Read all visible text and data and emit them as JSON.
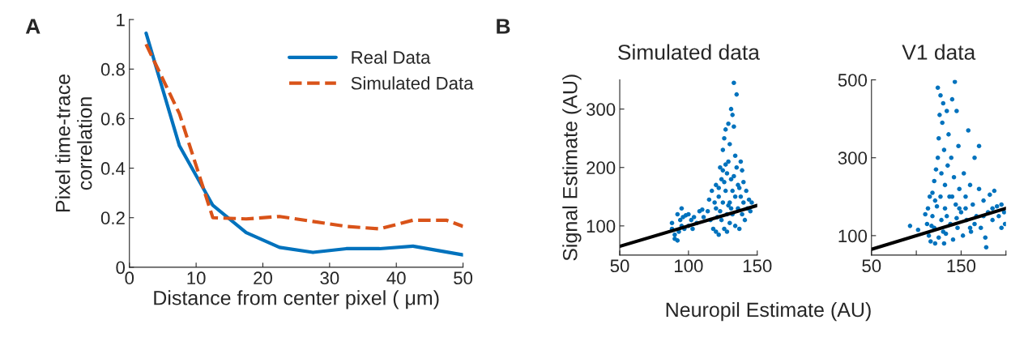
{
  "chart_data": [
    {
      "type": "line",
      "xlabel": "Distance from center pixel ( μm)",
      "ylabel": "Pixel time-trace\ncorrelation",
      "annotations": [
        "A"
      ],
      "xlim": [
        0,
        50
      ],
      "ylim": [
        0,
        1
      ],
      "xticks": [
        0,
        10,
        20,
        30,
        40,
        50
      ],
      "yticks": [
        0,
        0.2,
        0.4,
        0.6,
        0.8,
        1
      ],
      "grid": false,
      "legend": "top right",
      "series": [
        {
          "name": "Real Data",
          "color": "#0072bd",
          "line_style": "solid",
          "x": [
            2.5,
            7.5,
            12.5,
            17.5,
            22.5,
            27.5,
            32.5,
            37.5,
            42.5,
            50
          ],
          "values": [
            0.945,
            0.49,
            0.25,
            0.14,
            0.08,
            0.06,
            0.075,
            0.075,
            0.085,
            0.05
          ]
        },
        {
          "name": "Simulated Data",
          "color": "#d95319",
          "line_style": "dashed",
          "x": [
            2.5,
            7.5,
            12.5,
            17.5,
            22.5,
            27.5,
            32.5,
            37.5,
            42.5,
            47.5,
            50
          ],
          "values": [
            0.9,
            0.62,
            0.2,
            0.195,
            0.205,
            0.185,
            0.165,
            0.155,
            0.19,
            0.19,
            0.165
          ]
        }
      ]
    },
    {
      "type": "scatter",
      "title": "Simulated data",
      "ylabel": "Signal Estimate (AU)",
      "xlabel": "Neuropil Estimate (AU)",
      "annotations": [
        "B"
      ],
      "xlim": [
        50,
        150
      ],
      "ylim": [
        50,
        350
      ],
      "xticks": [
        50,
        100,
        150
      ],
      "yticks": [
        100,
        200,
        300
      ],
      "grid": false,
      "series": [
        {
          "type": "scatter",
          "marker": "circle",
          "color": "#0072bd",
          "x": [
            88,
            88,
            90,
            90,
            92,
            93,
            95,
            94,
            96,
            98,
            100,
            102,
            100,
            104,
            106,
            108,
            110,
            111,
            95,
            92,
            97,
            103,
            114,
            115,
            116,
            117,
            118,
            120,
            120,
            120,
            122,
            122,
            123,
            124,
            124,
            125,
            125,
            126,
            126,
            127,
            127,
            128,
            128,
            128,
            129,
            129,
            130,
            130,
            130,
            131,
            131,
            132,
            132,
            132,
            133,
            133,
            134,
            134,
            134,
            135,
            135,
            136,
            136,
            137,
            138,
            138,
            139,
            140,
            140,
            141,
            142,
            143,
            144,
            146,
            145,
            121,
            119,
            123,
            126,
            129,
            131,
            133,
            137,
            139,
            127,
            125,
            122
          ],
          "values": [
            105,
            95,
            85,
            78,
            75,
            90,
            100,
            110,
            115,
            118,
            120,
            110,
            100,
            115,
            105,
            125,
            128,
            115,
            130,
            120,
            95,
            95,
            125,
            145,
            110,
            160,
            95,
            170,
            130,
            90,
            85,
            150,
            200,
            180,
            110,
            230,
            140,
            95,
            250,
            265,
            160,
            190,
            120,
            90,
            275,
            210,
            240,
            140,
            105,
            300,
            180,
            290,
            160,
            120,
            345,
            270,
            220,
            150,
            100,
            325,
            200,
            170,
            130,
            95,
            210,
            150,
            120,
            175,
            140,
            110,
            160,
            130,
            145,
            140,
            125,
            115,
            140,
            125,
            175,
            135,
            130,
            185,
            165,
            195,
            205,
            195,
            165
          ]
        },
        {
          "type": "line",
          "color": "#000000",
          "line_style": "solid",
          "x": [
            50,
            150
          ],
          "values": [
            65,
            135
          ]
        }
      ]
    },
    {
      "type": "scatter",
      "title": "V1 data",
      "xlim": [
        50,
        200
      ],
      "ylim": [
        50,
        500
      ],
      "xticks": [
        50,
        {
          "value": 100,
          "label": null
        },
        150,
        {
          "value": 200,
          "label": null
        }
      ],
      "yticks": [
        100,
        300,
        500
      ],
      "grid": false,
      "series": [
        {
          "type": "scatter",
          "marker": "circle",
          "color": "#0072bd",
          "x": [
            93,
            102,
            112,
            113,
            114,
            115,
            116,
            118,
            118,
            120,
            120,
            121,
            122,
            123,
            124,
            124,
            125,
            125,
            126,
            127,
            128,
            128,
            129,
            130,
            131,
            131,
            132,
            132,
            133,
            134,
            135,
            136,
            137,
            138,
            139,
            140,
            141,
            142,
            143,
            144,
            145,
            146,
            147,
            148,
            150,
            152,
            153,
            155,
            156,
            158,
            160,
            161,
            163,
            165,
            167,
            170,
            170,
            172,
            175,
            177,
            178,
            180,
            182,
            185,
            187,
            190,
            192,
            195,
            195,
            198,
            199,
            110,
            117,
            121,
            127,
            134,
            140,
            148,
            155,
            165,
            175,
            185,
            130,
            145,
            160
          ],
          "values": [
            125,
            115,
            130,
            170,
            100,
            200,
            85,
            150,
            210,
            240,
            120,
            80,
            270,
            175,
            300,
            480,
            350,
            95,
            410,
            460,
            260,
            140,
            390,
            440,
            320,
            80,
            230,
            170,
            105,
            420,
            280,
            360,
            200,
            130,
            300,
            450,
            90,
            250,
            495,
            180,
            420,
            120,
            330,
            220,
            160,
            100,
            260,
            200,
            140,
            370,
            230,
            110,
            180,
            300,
            150,
            220,
            330,
            120,
            190,
            95,
            70,
            160,
            205,
            140,
            215,
            175,
            150,
            120,
            180,
            160,
            130,
            155,
            125,
            190,
            200,
            150,
            200,
            170,
            170,
            130,
            150,
            170,
            110,
            145,
            120
          ]
        },
        {
          "type": "line",
          "color": "#000000",
          "line_style": "solid",
          "x": [
            50,
            200
          ],
          "values": [
            65,
            170
          ]
        }
      ]
    }
  ]
}
